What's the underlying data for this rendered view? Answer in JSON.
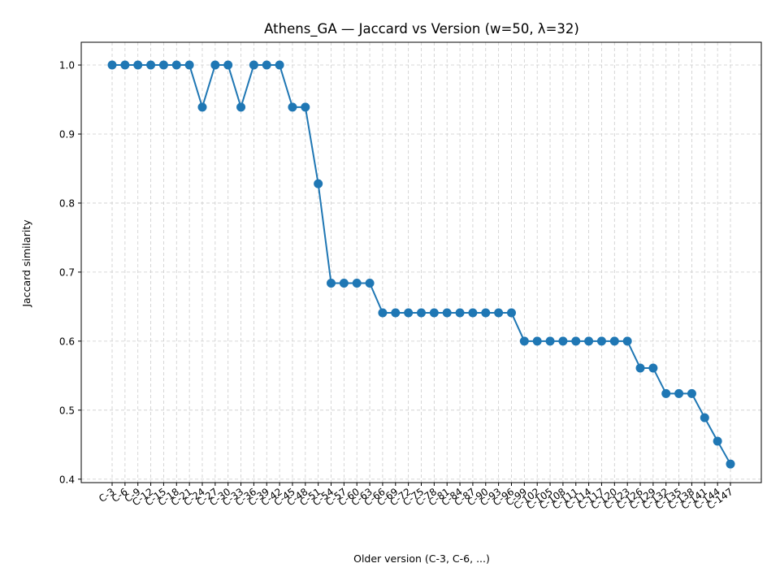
{
  "chart_data": {
    "type": "line",
    "title": "Athens_GA — Jaccard vs Version (w=50, λ=32)",
    "xlabel": "Older version (C-3, C-6, ...)",
    "ylabel": "Jaccard similarity",
    "ylim": [
      0.395,
      1.033
    ],
    "yticks": [
      "0.4",
      "0.5",
      "0.6",
      "0.7",
      "0.8",
      "0.9",
      "1.0"
    ],
    "grid": true,
    "marker": "circle",
    "color": "#1f77b4",
    "x": [
      "C-3",
      "C-6",
      "C-9",
      "C-12",
      "C-15",
      "C-18",
      "C-21",
      "C-24",
      "C-27",
      "C-30",
      "C-33",
      "C-36",
      "C-39",
      "C-42",
      "C-45",
      "C-48",
      "C-51",
      "C-54",
      "C-57",
      "C-60",
      "C-63",
      "C-66",
      "C-69",
      "C-72",
      "C-75",
      "C-78",
      "C-81",
      "C-84",
      "C-87",
      "C-90",
      "C-93",
      "C-96",
      "C-99",
      "C-102",
      "C-105",
      "C-108",
      "C-111",
      "C-114",
      "C-117",
      "C-120",
      "C-123",
      "C-126",
      "C-129",
      "C-132",
      "C-135",
      "C-138",
      "C-141",
      "C-144",
      "C-147"
    ],
    "series": [
      {
        "values": [
          1.0,
          1.0,
          1.0,
          1.0,
          1.0,
          1.0,
          1.0,
          0.939,
          1.0,
          1.0,
          0.939,
          1.0,
          1.0,
          1.0,
          0.939,
          0.939,
          0.828,
          0.684,
          0.684,
          0.684,
          0.684,
          0.641,
          0.641,
          0.641,
          0.641,
          0.641,
          0.641,
          0.641,
          0.641,
          0.641,
          0.641,
          0.641,
          0.6,
          0.6,
          0.6,
          0.6,
          0.6,
          0.6,
          0.6,
          0.6,
          0.6,
          0.561,
          0.561,
          0.524,
          0.524,
          0.524,
          0.489,
          0.455,
          0.422
        ]
      }
    ]
  }
}
